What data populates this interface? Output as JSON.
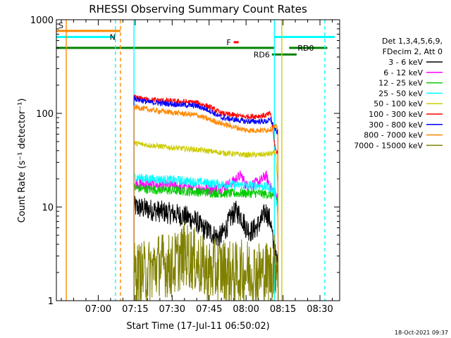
{
  "chart_data": {
    "type": "line",
    "title": "RHESSI Observing Summary Count Rates",
    "xlabel": "Start Time (17-Jul-11 06:50:02)",
    "ylabel": "Count Rate (s⁻¹ detector⁻¹)",
    "yscale": "log",
    "ylim": [
      1,
      1000
    ],
    "xlim_minutes": [
      -7,
      108
    ],
    "x_ticks": [
      {
        "t": 10,
        "label": "07:00"
      },
      {
        "t": 25,
        "label": "07:15"
      },
      {
        "t": 40,
        "label": "07:30"
      },
      {
        "t": 55,
        "label": "07:45"
      },
      {
        "t": 70,
        "label": "08:00"
      },
      {
        "t": 85,
        "label": "08:15"
      },
      {
        "t": 100,
        "label": "08:30"
      }
    ],
    "y_ticks": [
      {
        "v": 1,
        "label": "1"
      },
      {
        "v": 10,
        "label": "10"
      },
      {
        "v": 100,
        "label": "100"
      },
      {
        "v": 1000,
        "label": "1000"
      }
    ],
    "legend_header": [
      "Det 1,3,4,5,6,9,",
      "FDecim 2, Att 0"
    ],
    "legend_position": "right",
    "series": [
      {
        "name": "3 - 6 keV",
        "color": "#000000",
        "t": [
          24.5,
          30,
          35,
          40,
          45,
          50,
          52,
          55,
          57,
          59,
          60,
          62,
          64,
          66,
          68,
          70,
          72,
          74,
          76,
          78,
          80,
          81,
          82,
          83
        ],
        "values": [
          10,
          9.5,
          9,
          8.5,
          8,
          7,
          6,
          5.5,
          5,
          4.7,
          5,
          6,
          8,
          9,
          8,
          6,
          5.5,
          6,
          7,
          9,
          7,
          4,
          3,
          2.4
        ]
      },
      {
        "name": "6 - 12 keV",
        "color": "#ff00ff",
        "t": [
          24.5,
          30,
          40,
          50,
          55,
          60,
          62,
          64,
          66,
          68,
          70,
          72,
          74,
          76,
          78,
          80,
          82,
          83
        ],
        "values": [
          18,
          17.5,
          17,
          16,
          15.5,
          16,
          17,
          18,
          20,
          22,
          17,
          17,
          18,
          19,
          22,
          16,
          14,
          12
        ]
      },
      {
        "name": "12 - 25 keV",
        "color": "#00cc00",
        "t": [
          24.5,
          30,
          40,
          50,
          60,
          70,
          75,
          80,
          82,
          83
        ],
        "values": [
          16,
          15.5,
          15,
          14.5,
          14,
          14,
          14,
          13.5,
          13,
          11
        ]
      },
      {
        "name": "25 - 50 keV",
        "color": "#00ffff",
        "t": [
          24.5,
          30,
          40,
          50,
          60,
          70,
          75,
          80,
          82,
          83
        ],
        "values": [
          21,
          20,
          19.5,
          18.5,
          17.5,
          17,
          17,
          16,
          14,
          8
        ]
      },
      {
        "name": "50 - 100 keV",
        "color": "#cccc00",
        "t": [
          24.5,
          30,
          40,
          50,
          60,
          70,
          75,
          80,
          82,
          83
        ],
        "values": [
          48,
          46,
          43,
          41,
          38,
          36,
          36,
          37,
          38,
          15
        ]
      },
      {
        "name": "100 - 300 keV",
        "color": "#ff0000",
        "t": [
          24.5,
          30,
          40,
          50,
          55,
          60,
          70,
          78,
          80,
          82,
          83
        ],
        "values": [
          148,
          140,
          135,
          130,
          118,
          100,
          92,
          95,
          100,
          40,
          38
        ]
      },
      {
        "name": "300 - 800 keV",
        "color": "#0000ff",
        "t": [
          24.5,
          30,
          40,
          50,
          55,
          60,
          70,
          78,
          80,
          82,
          83
        ],
        "values": [
          145,
          132,
          126,
          120,
          108,
          90,
          82,
          82,
          85,
          65,
          62
        ]
      },
      {
        "name": "800 - 7000 keV",
        "color": "#ff8800",
        "t": [
          24.5,
          30,
          40,
          50,
          55,
          60,
          70,
          78,
          80,
          82,
          83
        ],
        "values": [
          118,
          110,
          102,
          96,
          86,
          78,
          66,
          66,
          68,
          72,
          70
        ]
      },
      {
        "name": "7000 - 15000 keV",
        "color": "#808000",
        "t": [
          24.5,
          30,
          35,
          40,
          45,
          50,
          55,
          60,
          65,
          70,
          75,
          80,
          82,
          83
        ],
        "values": [
          1.9,
          2,
          2.5,
          2.3,
          3.2,
          2.6,
          2,
          2.2,
          1.9,
          2.1,
          2,
          2,
          2.5,
          2.8
        ]
      }
    ],
    "flags": [
      {
        "name": "S",
        "color": "#ff8800",
        "t0": -7,
        "t1": 19,
        "level": 760
      },
      {
        "name": "N",
        "color": "#00ffff",
        "t0": -7,
        "t1": 17,
        "level": 655
      },
      {
        "name": "SAA",
        "color": "#00ffff",
        "t0": 81.5,
        "t1": 106,
        "level": 655
      },
      {
        "name": "F",
        "color": "#ff0000",
        "t0": 65,
        "t1": 67,
        "level": 575
      },
      {
        "name": "RD0",
        "color": "#008000",
        "t0": 87.5,
        "t1": 103,
        "level": 500
      },
      {
        "name": "RD6",
        "color": "#008000",
        "t0": 80.5,
        "t1": 90.5,
        "level": 425
      },
      {
        "name": "baseline",
        "color": "#008000",
        "t0": -7,
        "t1": 81.5,
        "level": 500
      }
    ],
    "flag_labels": [
      "S",
      "N",
      "F",
      "RD0",
      "RD6"
    ],
    "vertical_markers": [
      {
        "t": -3,
        "color": "#ff8800",
        "style": "solid"
      },
      {
        "t": 19,
        "color": "#ff8800",
        "style": "dashed"
      },
      {
        "t": 17,
        "color": "#00ffff",
        "style": "dashed"
      },
      {
        "t": 24.5,
        "color": "#00ffff",
        "style": "solid"
      },
      {
        "t": 81.5,
        "color": "#00ffff",
        "style": "solid"
      },
      {
        "t": 84.5,
        "color": "#cccc00",
        "style": "solid"
      },
      {
        "t": 102,
        "color": "#00ffff",
        "style": "dashed"
      }
    ]
  },
  "timestamp": "18-Oct-2021 09:37"
}
